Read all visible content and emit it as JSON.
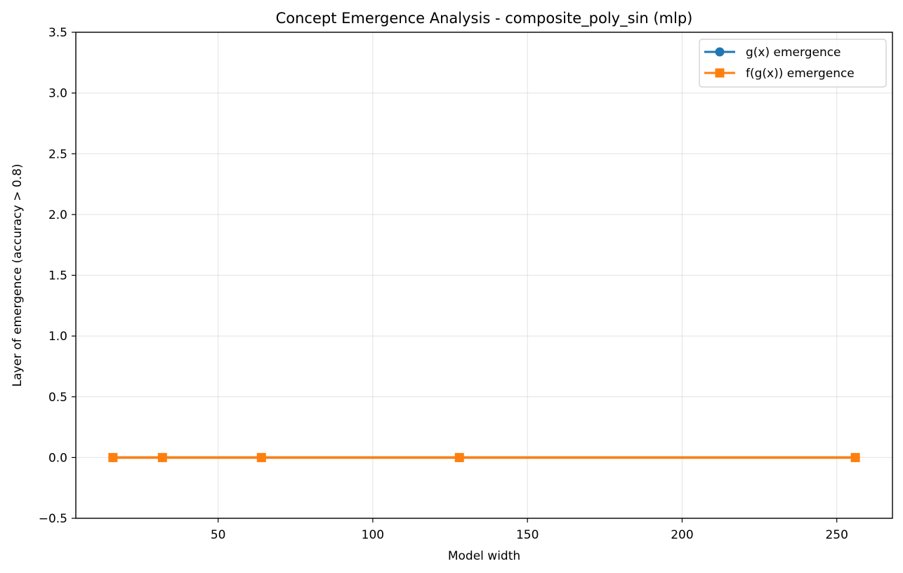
{
  "chart_data": {
    "type": "line",
    "title": "Concept Emergence Analysis - composite_poly_sin (mlp)",
    "xlabel": "Model width",
    "ylabel": "Layer of emergence (accuracy > 0.8)",
    "x": [
      16,
      32,
      64,
      128,
      256
    ],
    "xlim": [
      4,
      268
    ],
    "ylim": [
      -0.5,
      3.5
    ],
    "xticks": [
      50,
      100,
      150,
      200,
      250
    ],
    "yticks": [
      -0.5,
      0.0,
      0.5,
      1.0,
      1.5,
      2.0,
      2.5,
      3.0,
      3.5
    ],
    "xtick_labels": [
      "50",
      "100",
      "150",
      "200",
      "250"
    ],
    "ytick_labels": [
      "−0.5",
      "0.0",
      "0.5",
      "1.0",
      "1.5",
      "2.0",
      "2.5",
      "3.0",
      "3.5"
    ],
    "grid": true,
    "legend_position": "top-right",
    "series": [
      {
        "name": "g(x) emergence",
        "marker": "circle",
        "color": "#1f77b4",
        "values": [
          0,
          0,
          0,
          0,
          0
        ]
      },
      {
        "name": "f(g(x)) emergence",
        "marker": "square",
        "color": "#ff7f0e",
        "values": [
          0,
          0,
          0,
          0,
          0
        ]
      }
    ]
  }
}
